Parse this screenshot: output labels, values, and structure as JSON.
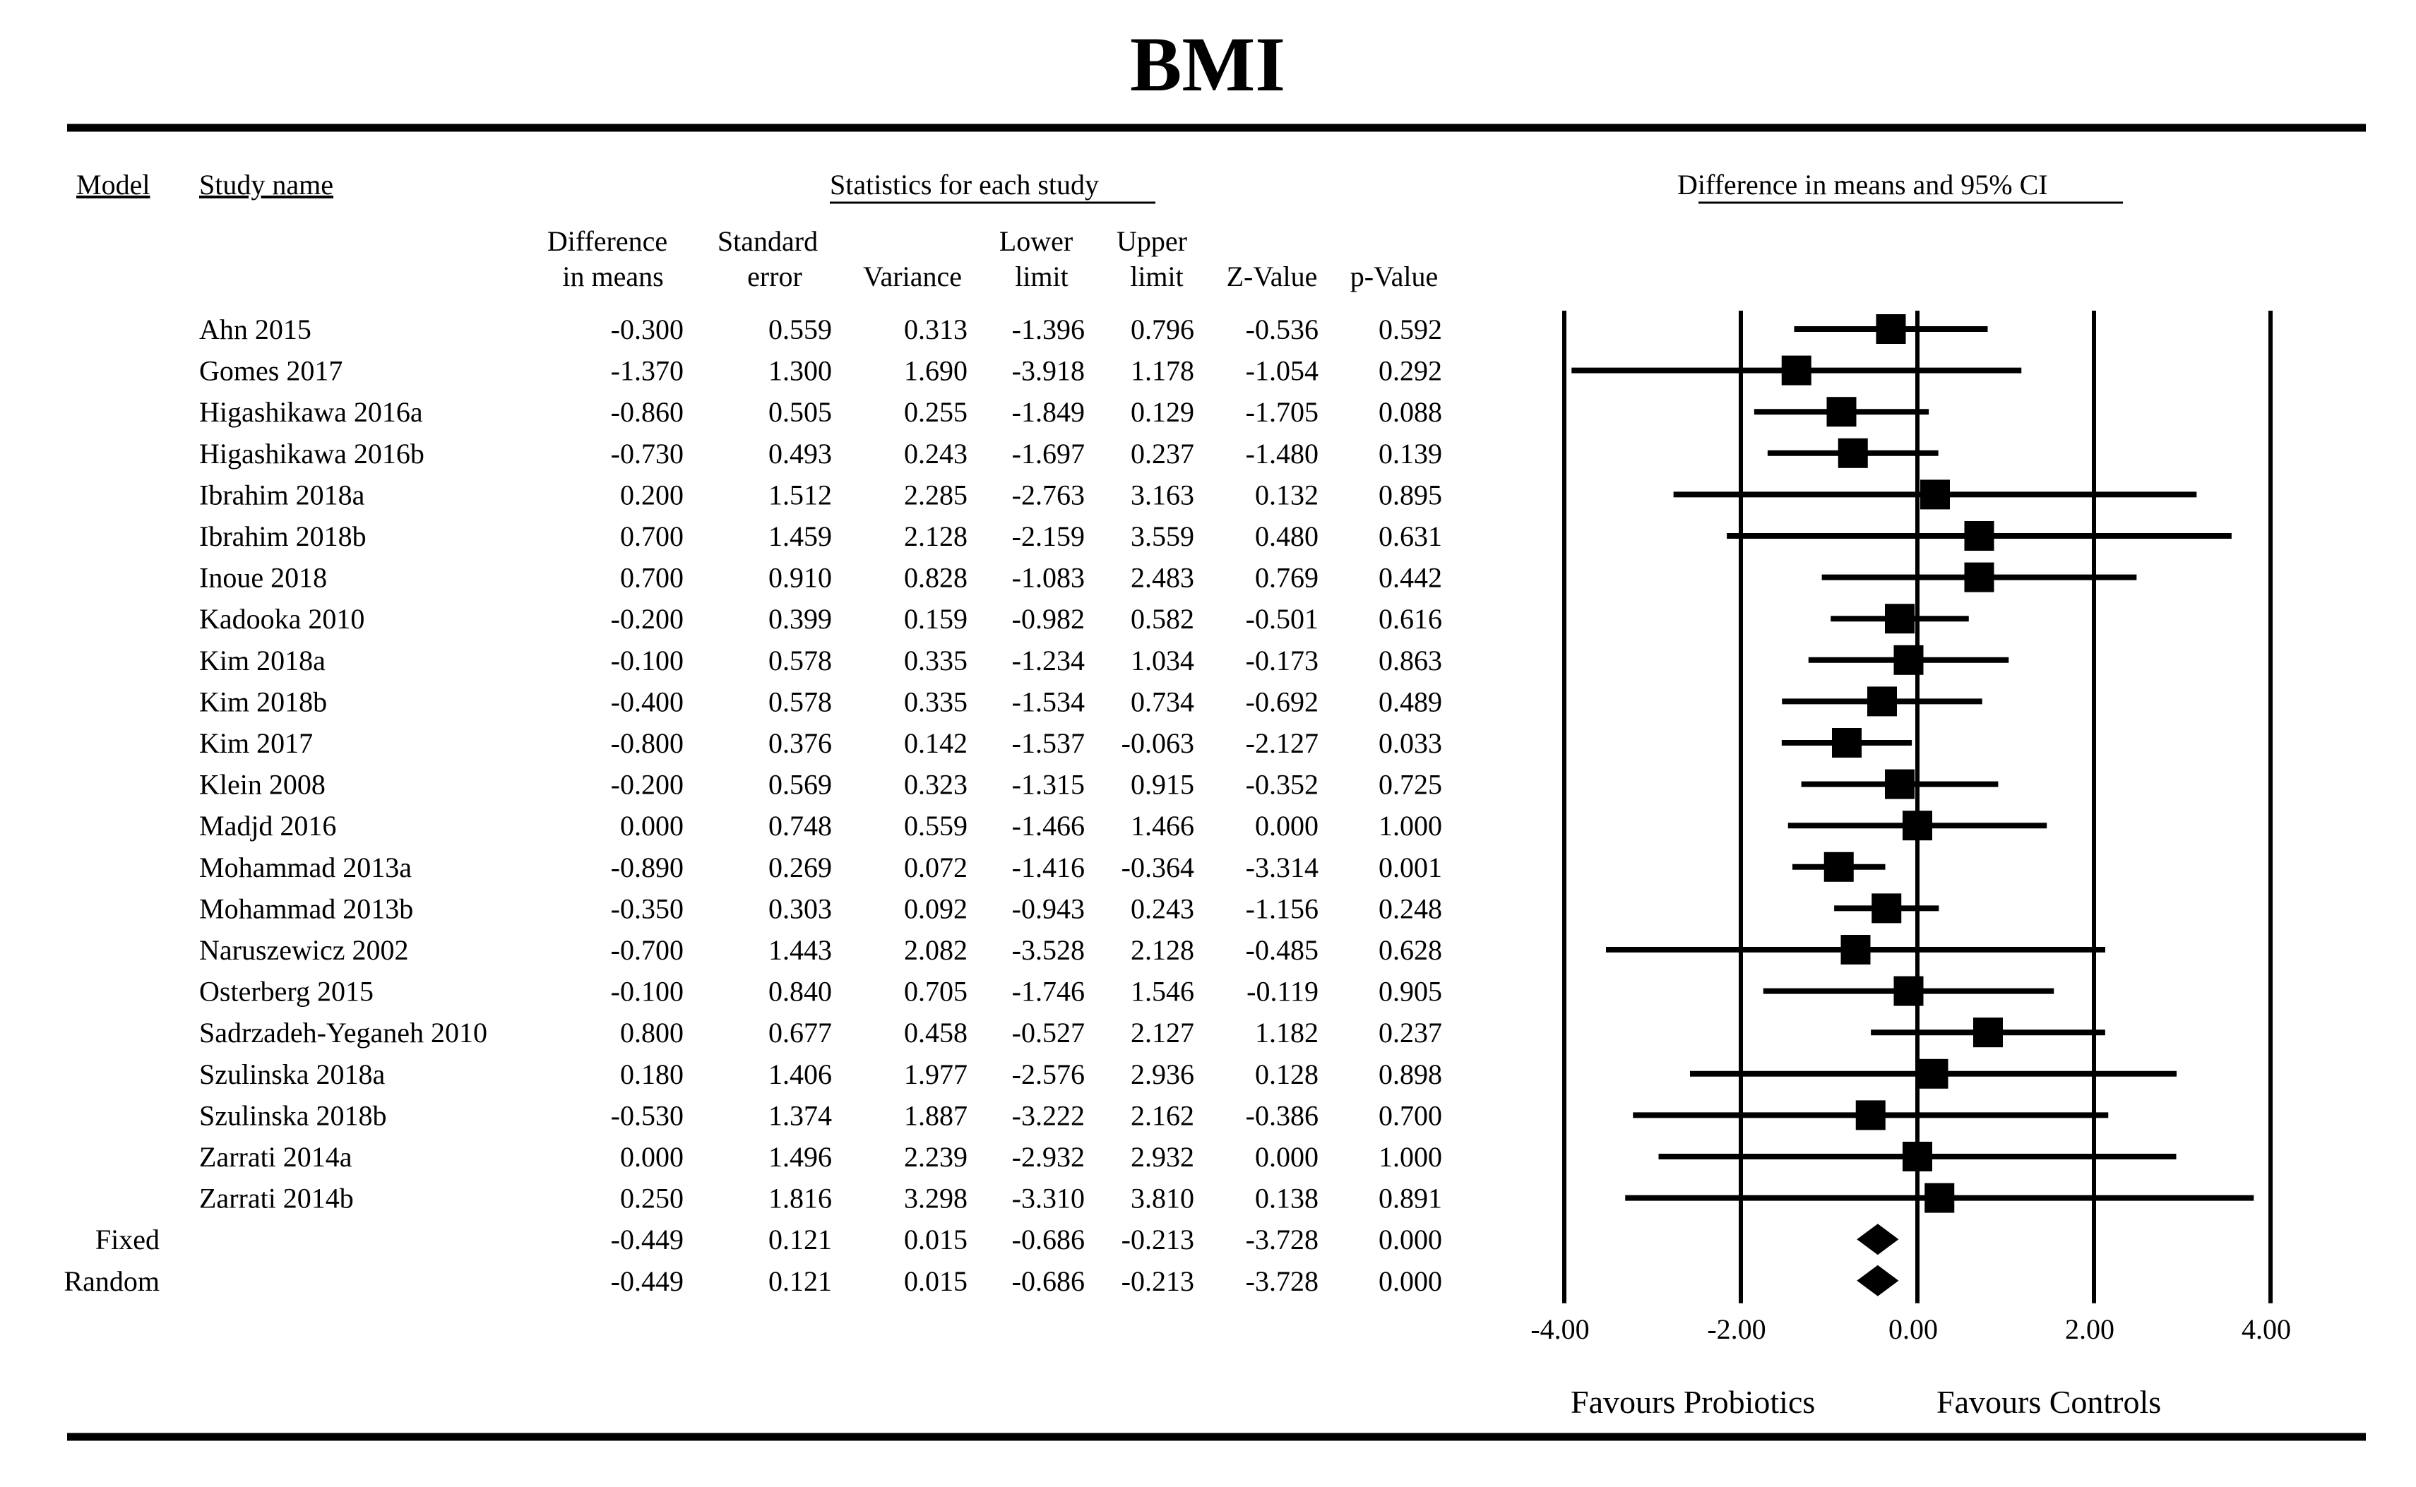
{
  "chart_data": {
    "type": "forest",
    "title": "BMI",
    "headers": {
      "model": "Model",
      "study_name": "Study name",
      "stats_group": "Statistics for each study",
      "plot_group": "Difference in means and 95% CI",
      "col_diff": [
        "Difference",
        "in means"
      ],
      "col_se": [
        "Standard",
        "error"
      ],
      "col_var": "Variance",
      "col_lower": [
        "Lower",
        "limit"
      ],
      "col_upper": [
        "Upper",
        "limit"
      ],
      "col_z": "Z-Value",
      "col_p": "p-Value"
    },
    "studies": [
      {
        "name": "Ahn 2015",
        "diff": "-0.300",
        "se": "0.559",
        "var": "0.313",
        "lower": "-1.396",
        "upper": "0.796",
        "z": "-0.536",
        "p": "0.592"
      },
      {
        "name": "Gomes 2017",
        "diff": "-1.370",
        "se": "1.300",
        "var": "1.690",
        "lower": "-3.918",
        "upper": "1.178",
        "z": "-1.054",
        "p": "0.292"
      },
      {
        "name": "Higashikawa 2016a",
        "diff": "-0.860",
        "se": "0.505",
        "var": "0.255",
        "lower": "-1.849",
        "upper": "0.129",
        "z": "-1.705",
        "p": "0.088"
      },
      {
        "name": "Higashikawa 2016b",
        "diff": "-0.730",
        "se": "0.493",
        "var": "0.243",
        "lower": "-1.697",
        "upper": "0.237",
        "z": "-1.480",
        "p": "0.139"
      },
      {
        "name": "Ibrahim 2018a",
        "diff": "0.200",
        "se": "1.512",
        "var": "2.285",
        "lower": "-2.763",
        "upper": "3.163",
        "z": "0.132",
        "p": "0.895"
      },
      {
        "name": "Ibrahim 2018b",
        "diff": "0.700",
        "se": "1.459",
        "var": "2.128",
        "lower": "-2.159",
        "upper": "3.559",
        "z": "0.480",
        "p": "0.631"
      },
      {
        "name": "Inoue 2018",
        "diff": "0.700",
        "se": "0.910",
        "var": "0.828",
        "lower": "-1.083",
        "upper": "2.483",
        "z": "0.769",
        "p": "0.442"
      },
      {
        "name": "Kadooka 2010",
        "diff": "-0.200",
        "se": "0.399",
        "var": "0.159",
        "lower": "-0.982",
        "upper": "0.582",
        "z": "-0.501",
        "p": "0.616"
      },
      {
        "name": "Kim 2018a",
        "diff": "-0.100",
        "se": "0.578",
        "var": "0.335",
        "lower": "-1.234",
        "upper": "1.034",
        "z": "-0.173",
        "p": "0.863"
      },
      {
        "name": "Kim 2018b",
        "diff": "-0.400",
        "se": "0.578",
        "var": "0.335",
        "lower": "-1.534",
        "upper": "0.734",
        "z": "-0.692",
        "p": "0.489"
      },
      {
        "name": "Kim 2017",
        "diff": "-0.800",
        "se": "0.376",
        "var": "0.142",
        "lower": "-1.537",
        "upper": "-0.063",
        "z": "-2.127",
        "p": "0.033"
      },
      {
        "name": "Klein 2008",
        "diff": "-0.200",
        "se": "0.569",
        "var": "0.323",
        "lower": "-1.315",
        "upper": "0.915",
        "z": "-0.352",
        "p": "0.725"
      },
      {
        "name": "Madjd 2016",
        "diff": "0.000",
        "se": "0.748",
        "var": "0.559",
        "lower": "-1.466",
        "upper": "1.466",
        "z": "0.000",
        "p": "1.000"
      },
      {
        "name": "Mohammad 2013a",
        "diff": "-0.890",
        "se": "0.269",
        "var": "0.072",
        "lower": "-1.416",
        "upper": "-0.364",
        "z": "-3.314",
        "p": "0.001"
      },
      {
        "name": "Mohammad 2013b",
        "diff": "-0.350",
        "se": "0.303",
        "var": "0.092",
        "lower": "-0.943",
        "upper": "0.243",
        "z": "-1.156",
        "p": "0.248"
      },
      {
        "name": "Naruszewicz 2002",
        "diff": "-0.700",
        "se": "1.443",
        "var": "2.082",
        "lower": "-3.528",
        "upper": "2.128",
        "z": "-0.485",
        "p": "0.628"
      },
      {
        "name": "Osterberg 2015",
        "diff": "-0.100",
        "se": "0.840",
        "var": "0.705",
        "lower": "-1.746",
        "upper": "1.546",
        "z": "-0.119",
        "p": "0.905"
      },
      {
        "name": "Sadrzadeh-Yeganeh 2010",
        "diff": "0.800",
        "se": "0.677",
        "var": "0.458",
        "lower": "-0.527",
        "upper": "2.127",
        "z": "1.182",
        "p": "0.237"
      },
      {
        "name": "Szulinska 2018a",
        "diff": "0.180",
        "se": "1.406",
        "var": "1.977",
        "lower": "-2.576",
        "upper": "2.936",
        "z": "0.128",
        "p": "0.898"
      },
      {
        "name": "Szulinska 2018b",
        "diff": "-0.530",
        "se": "1.374",
        "var": "1.887",
        "lower": "-3.222",
        "upper": "2.162",
        "z": "-0.386",
        "p": "0.700"
      },
      {
        "name": "Zarrati 2014a",
        "diff": "0.000",
        "se": "1.496",
        "var": "2.239",
        "lower": "-2.932",
        "upper": "2.932",
        "z": "0.000",
        "p": "1.000"
      },
      {
        "name": "Zarrati 2014b",
        "diff": "0.250",
        "se": "1.816",
        "var": "3.298",
        "lower": "-3.310",
        "upper": "3.810",
        "z": "0.138",
        "p": "0.891"
      }
    ],
    "summaries": [
      {
        "model": "Fixed",
        "diff": "-0.449",
        "se": "0.121",
        "var": "0.015",
        "lower": "-0.686",
        "upper": "-0.213",
        "z": "-3.728",
        "p": "0.000"
      },
      {
        "model": "Random",
        "diff": "-0.449",
        "se": "0.121",
        "var": "0.015",
        "lower": "-0.686",
        "upper": "-0.213",
        "z": "-3.728",
        "p": "0.000"
      }
    ],
    "xlim": [
      -4,
      4
    ],
    "xticks": [
      -4,
      -2,
      0,
      2,
      4
    ],
    "xtick_labels": [
      "-4.00",
      "-2.00",
      "0.00",
      "2.00",
      "4.00"
    ],
    "favours_left": "Favours Probiotics",
    "favours_right": "Favours Controls"
  }
}
